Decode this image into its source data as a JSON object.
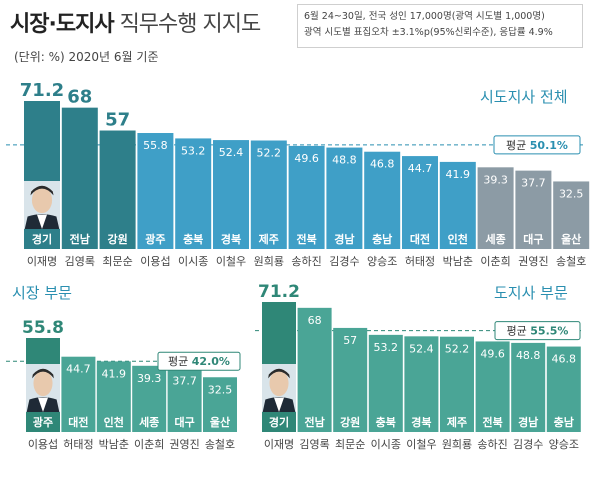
{
  "header": {
    "title_main": "시장·도지사",
    "title_sub": "직무수행 지지도",
    "unit": "(단위: %) 2020년 6월 기준",
    "survey_line1": "6월 24~30일, 전국 성인 17,000명(광역 시도별 1,000명)",
    "survey_line2": "광역 시도별 표집오차 ±3.1%p(95%신뢰수준), 응답률 4.9%"
  },
  "colors": {
    "dark_teal": "#2e7f8a",
    "bar_blue": "#3f9fc7",
    "bar_gray": "#8c9ba5",
    "teal": "#4aa596",
    "teal_dark": "#2f8777",
    "accent_text": "#2a8fb0"
  },
  "chart_data": [
    {
      "type": "bar",
      "title": "시도지사 전체",
      "categories": [
        "경기",
        "전남",
        "강원",
        "광주",
        "충북",
        "경북",
        "제주",
        "전북",
        "경남",
        "충남",
        "대전",
        "인천",
        "세종",
        "대구",
        "울산"
      ],
      "names": [
        "이재명",
        "김영록",
        "최문순",
        "이용섭",
        "이시종",
        "이철우",
        "원희룡",
        "송하진",
        "김경수",
        "양승조",
        "허태정",
        "박남춘",
        "이춘희",
        "권영진",
        "송철호"
      ],
      "values": [
        71.2,
        68,
        57,
        55.8,
        53.2,
        52.4,
        52.2,
        49.6,
        48.8,
        46.8,
        44.7,
        41.9,
        39.3,
        37.7,
        32.5
      ],
      "average_label": "평균",
      "average_value": 50.1,
      "average_text": "50.1%"
    },
    {
      "type": "bar",
      "title": "시장 부문",
      "categories": [
        "광주",
        "대전",
        "인천",
        "세종",
        "대구",
        "울산"
      ],
      "names": [
        "이용섭",
        "허태정",
        "박남춘",
        "이춘희",
        "권영진",
        "송철호"
      ],
      "values": [
        55.8,
        44.7,
        41.9,
        39.3,
        37.7,
        32.5
      ],
      "average_label": "평균",
      "average_value": 42.0,
      "average_text": "42.0%"
    },
    {
      "type": "bar",
      "title": "도지사 부문",
      "categories": [
        "경기",
        "전남",
        "강원",
        "충북",
        "경북",
        "제주",
        "전북",
        "경남",
        "충남"
      ],
      "names": [
        "이재명",
        "김영록",
        "최문순",
        "이시종",
        "이철우",
        "원희룡",
        "송하진",
        "김경수",
        "양승조"
      ],
      "values": [
        71.2,
        68,
        57,
        53.2,
        52.4,
        52.2,
        49.6,
        48.8,
        46.8
      ],
      "average_label": "평균",
      "average_value": 55.5,
      "average_text": "55.5%"
    }
  ]
}
